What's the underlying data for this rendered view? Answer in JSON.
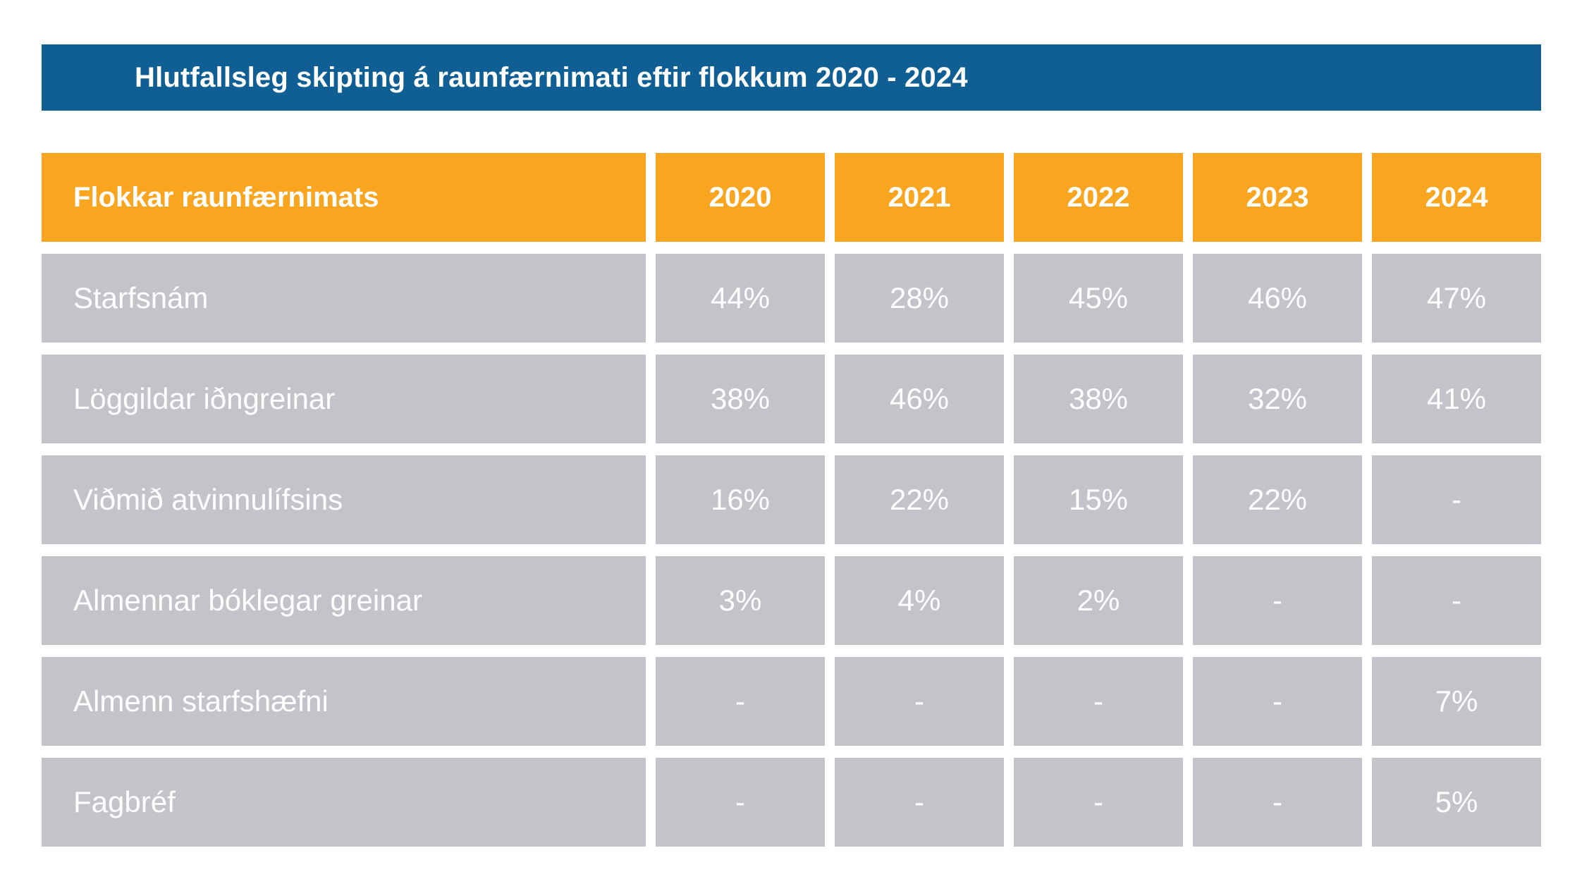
{
  "title": "Hlutfallsleg skipting á raunfærnimati eftir flokkum 2020 - 2024",
  "colors": {
    "blue": "#0f5e94",
    "orange": "#f9a51f",
    "gray": "#c4c3c9",
    "cell-text": "#ffffff",
    "page-bg": "#ffffff"
  },
  "table": {
    "header": {
      "label": "Flokkar raunfærnimats",
      "years": [
        "2020",
        "2021",
        "2022",
        "2023",
        "2024"
      ]
    },
    "rows": [
      {
        "label": "Starfsnám",
        "values": [
          "44%",
          "28%",
          "45%",
          "46%",
          "47%"
        ]
      },
      {
        "label": "Löggildar iðngreinar",
        "values": [
          "38%",
          "46%",
          "38%",
          "32%",
          "41%"
        ]
      },
      {
        "label": "Viðmið atvinnulífsins",
        "values": [
          "16%",
          "22%",
          "15%",
          "22%",
          "-"
        ]
      },
      {
        "label": "Almennar bóklegar greinar",
        "values": [
          "3%",
          "4%",
          "2%",
          "-",
          "-"
        ]
      },
      {
        "label": "Almenn starfshæfni",
        "values": [
          "-",
          "-",
          "-",
          "-",
          "7%"
        ]
      },
      {
        "label": "Fagbréf",
        "values": [
          "-",
          "-",
          "-",
          "-",
          "5%"
        ]
      }
    ]
  },
  "chart_data": {
    "type": "table",
    "title": "Hlutfallsleg skipting á raunfærnimati eftir flokkum 2020 - 2024",
    "columns": [
      "Flokkar raunfærnimats",
      "2020",
      "2021",
      "2022",
      "2023",
      "2024"
    ],
    "rows": [
      [
        "Starfsnám",
        "44%",
        "28%",
        "45%",
        "46%",
        "47%"
      ],
      [
        "Löggildar iðngreinar",
        "38%",
        "46%",
        "38%",
        "32%",
        "41%"
      ],
      [
        "Viðmið atvinnulífsins",
        "16%",
        "22%",
        "15%",
        "22%",
        "-"
      ],
      [
        "Almennar bóklegar greinar",
        "3%",
        "4%",
        "2%",
        "-",
        "-"
      ],
      [
        "Almenn starfshæfni",
        "-",
        "-",
        "-",
        "-",
        "7%"
      ],
      [
        "Fagbréf",
        "-",
        "-",
        "-",
        "-",
        "5%"
      ]
    ]
  }
}
